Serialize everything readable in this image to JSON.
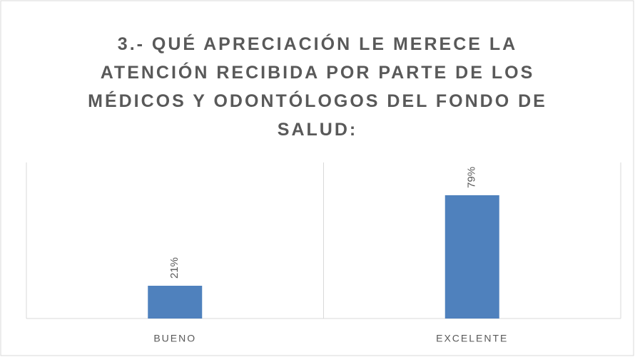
{
  "chart_data": {
    "type": "bar",
    "title": "3.- QUÉ APRECIACIÓN LE MERECE LA ATENCIÓN RECIBIDA POR PARTE DE LOS MÉDICOS Y ODONTÓLOGOS DEL FONDO DE SALUD:",
    "categories": [
      "BUENO",
      "EXCELENTE"
    ],
    "values": [
      21,
      79
    ],
    "value_labels": [
      "21%",
      "79%"
    ],
    "color": "#4f81bd"
  }
}
